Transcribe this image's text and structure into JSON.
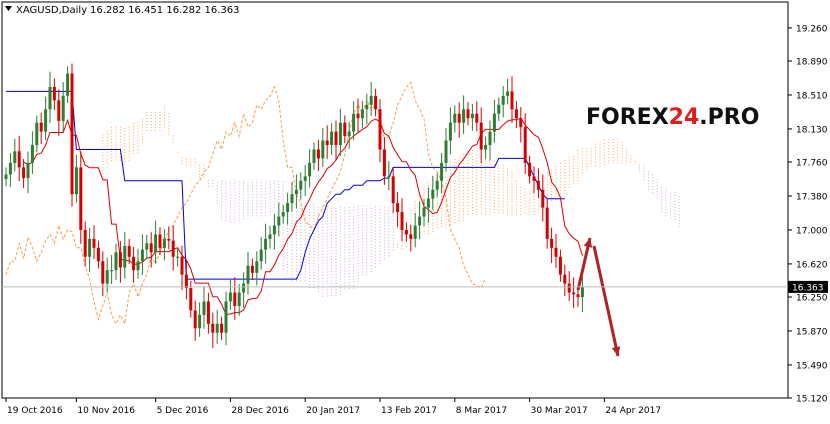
{
  "window": {
    "symbol_line": "XAGUSD,Daily",
    "ohlc_line": "16.282 16.451 16.282 16.363",
    "dropdown_icon": "triangle-down-icon"
  },
  "watermark": {
    "part1": "FOREX",
    "part2": "24",
    "part3": ".PRO",
    "color_main": "#111111",
    "color_accent": "#e31b1b"
  },
  "colors": {
    "bull_candle": "#2e7d32",
    "bear_candle": "#d50000",
    "tenkan": "#e00000",
    "kijun": "#0000dd",
    "chikou": "#ff9a4d",
    "cloud_bull": "#ff9a4d",
    "cloud_bear": "#c8a0d0",
    "forecast_arrow": "#b22222",
    "current_price_tag": "#000000",
    "grid": "#d9d9d9",
    "frame": "#000000"
  },
  "chart_data": {
    "type": "candlestick",
    "instrument": "XAGUSD",
    "timeframe": "Daily",
    "current_price": 16.363,
    "ylim": [
      15.12,
      19.55
    ],
    "y_ticks": [
      "19.260",
      "18.890",
      "18.510",
      "18.130",
      "17.760",
      "17.380",
      "17.000",
      "16.620",
      "16.250",
      "15.870",
      "15.490",
      "15.120"
    ],
    "y_tick_values": [
      19.26,
      18.89,
      18.51,
      18.13,
      17.76,
      17.38,
      17.0,
      16.62,
      16.25,
      15.87,
      15.49,
      15.12
    ],
    "current_price_label": "16.363",
    "x_ticks": [
      "19 Oct 2016",
      "10 Nov 2016",
      "5 Dec 2016",
      "28 Dec 2016",
      "20 Jan 2017",
      "13 Feb 2017",
      "8 Mar 2017",
      "30 Mar 2017",
      "24 Apr 2017"
    ],
    "x_tick_bars": [
      0,
      16,
      34,
      51,
      68,
      85,
      102,
      119,
      136
    ],
    "close": [
      17.62,
      17.75,
      17.88,
      17.7,
      17.58,
      17.75,
      17.95,
      18.2,
      18.1,
      18.35,
      18.6,
      18.45,
      18.22,
      18.5,
      18.75,
      17.4,
      17.7,
      17.0,
      16.7,
      16.9,
      16.8,
      16.65,
      16.4,
      16.55,
      16.55,
      16.75,
      16.58,
      16.82,
      16.7,
      16.55,
      16.65,
      16.78,
      16.85,
      16.75,
      16.95,
      16.8,
      16.9,
      16.88,
      16.7,
      16.7,
      16.5,
      16.35,
      16.1,
      15.9,
      16.05,
      16.2,
      15.95,
      15.85,
      15.95,
      15.85,
      16.2,
      16.3,
      16.15,
      16.3,
      16.4,
      16.6,
      16.52,
      16.65,
      16.78,
      16.9,
      16.95,
      17.05,
      17.15,
      17.2,
      17.3,
      17.4,
      17.45,
      17.55,
      17.6,
      17.75,
      17.9,
      17.8,
      18.0,
      17.95,
      18.1,
      17.95,
      18.2,
      18.05,
      18.1,
      18.3,
      18.25,
      18.35,
      18.4,
      18.5,
      18.35,
      17.9,
      17.6,
      17.6,
      17.3,
      17.2,
      17.0,
      16.95,
      16.9,
      17.05,
      17.15,
      17.25,
      17.35,
      17.45,
      17.55,
      17.75,
      18.0,
      18.2,
      18.3,
      18.2,
      18.35,
      18.25,
      18.3,
      18.2,
      17.9,
      17.95,
      18.1,
      18.3,
      18.4,
      18.5,
      18.55,
      18.35,
      18.25,
      18.15,
      17.75,
      17.6,
      17.55,
      17.45,
      17.25,
      16.9,
      16.8,
      16.7,
      16.5,
      16.4,
      16.3,
      16.28,
      16.25,
      16.36
    ],
    "open_delta_note": "OHLC estimated from candle shapes",
    "kijun": [
      18.55,
      18.55,
      18.55,
      18.55,
      18.55,
      18.55,
      18.55,
      18.55,
      18.55,
      18.55,
      18.55,
      18.55,
      18.55,
      18.55,
      18.55,
      18.55,
      17.9,
      17.9,
      17.9,
      17.9,
      17.9,
      17.9,
      17.9,
      17.9,
      17.9,
      17.9,
      17.9,
      17.55,
      17.55,
      17.55,
      17.55,
      17.55,
      17.55,
      17.55,
      17.55,
      17.55,
      17.55,
      17.55,
      17.55,
      17.55,
      17.55,
      16.45,
      16.45,
      16.45,
      16.45,
      16.45,
      16.45,
      16.45,
      16.45,
      16.45,
      16.45,
      16.45,
      16.45,
      16.45,
      16.45,
      16.45,
      16.45,
      16.45,
      16.45,
      16.45,
      16.45,
      16.45,
      16.45,
      16.45,
      16.45,
      16.45,
      16.45,
      16.55,
      16.75,
      16.9,
      17.0,
      17.1,
      17.15,
      17.3,
      17.35,
      17.4,
      17.4,
      17.45,
      17.45,
      17.5,
      17.5,
      17.5,
      17.55,
      17.55,
      17.55,
      17.55,
      17.58,
      17.58,
      17.7,
      17.7,
      17.7,
      17.7,
      17.7,
      17.7,
      17.7,
      17.7,
      17.7,
      17.7,
      17.7,
      17.7,
      17.7,
      17.7,
      17.7,
      17.7,
      17.7,
      17.7,
      17.7,
      17.7,
      17.7,
      17.7,
      17.7,
      17.7,
      17.8,
      17.8,
      17.8,
      17.8,
      17.8,
      17.8,
      17.8,
      17.7,
      17.6,
      17.5,
      17.4,
      17.35,
      17.35,
      17.35,
      17.35,
      17.35
    ],
    "tenkan_note": "computed from closes",
    "cloud_note": "Ichimoku cloud projected forward"
  }
}
